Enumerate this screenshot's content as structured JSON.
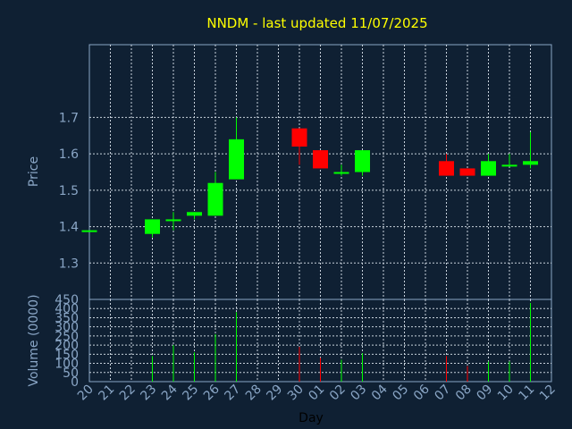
{
  "chart_data": {
    "type": "candlestick",
    "title": "NNDM - last updated 11/07/2025",
    "xlabel": "Day",
    "ylabel_price": "Price",
    "ylabel_volume": "Volume (0000)",
    "x_ticks": [
      "20",
      "21",
      "22",
      "23",
      "24",
      "25",
      "26",
      "27",
      "28",
      "29",
      "30",
      "01",
      "02",
      "03",
      "04",
      "05",
      "06",
      "07",
      "08",
      "09",
      "10",
      "11",
      "12"
    ],
    "price_ticks": [
      "1.3",
      "1.4",
      "1.5",
      "1.6",
      "1.7"
    ],
    "volume_ticks": [
      "0",
      "50",
      "100",
      "150",
      "200",
      "250",
      "300",
      "350",
      "400",
      "450"
    ],
    "price_range": [
      1.2,
      1.9
    ],
    "volume_range": [
      0,
      450
    ],
    "grid": true,
    "colors": {
      "up": "#00ff00",
      "down": "#ff0000",
      "title": "#ffff00",
      "background": "#0f2033",
      "axis": "#8aa6c6"
    },
    "candles": [
      {
        "day": "20",
        "open": 1.39,
        "high": 1.39,
        "low": 1.39,
        "close": 1.39,
        "volume": 0
      },
      {
        "day": "23",
        "open": 1.38,
        "high": 1.42,
        "low": 1.37,
        "close": 1.42,
        "volume": 140
      },
      {
        "day": "24",
        "open": 1.42,
        "high": 1.44,
        "low": 1.39,
        "close": 1.42,
        "volume": 200
      },
      {
        "day": "25",
        "open": 1.43,
        "high": 1.44,
        "low": 1.42,
        "close": 1.44,
        "volume": 160
      },
      {
        "day": "26",
        "open": 1.43,
        "high": 1.55,
        "low": 1.43,
        "close": 1.52,
        "volume": 260
      },
      {
        "day": "27",
        "open": 1.53,
        "high": 1.7,
        "low": 1.53,
        "close": 1.64,
        "volume": 380
      },
      {
        "day": "30",
        "open": 1.67,
        "high": 1.67,
        "low": 1.57,
        "close": 1.62,
        "volume": 190
      },
      {
        "day": "01",
        "open": 1.61,
        "high": 1.61,
        "low": 1.56,
        "close": 1.56,
        "volume": 130
      },
      {
        "day": "02",
        "open": 1.55,
        "high": 1.57,
        "low": 1.54,
        "close": 1.55,
        "volume": 120
      },
      {
        "day": "03",
        "open": 1.55,
        "high": 1.61,
        "low": 1.54,
        "close": 1.61,
        "volume": 155
      },
      {
        "day": "07",
        "open": 1.58,
        "high": 1.6,
        "low": 1.54,
        "close": 1.54,
        "volume": 140
      },
      {
        "day": "08",
        "open": 1.56,
        "high": 1.56,
        "low": 1.54,
        "close": 1.54,
        "volume": 85
      },
      {
        "day": "09",
        "open": 1.54,
        "high": 1.6,
        "low": 1.54,
        "close": 1.58,
        "volume": 110
      },
      {
        "day": "10",
        "open": 1.57,
        "high": 1.6,
        "low": 1.57,
        "close": 1.57,
        "volume": 110
      },
      {
        "day": "11",
        "open": 1.57,
        "high": 1.66,
        "low": 1.56,
        "close": 1.58,
        "volume": 430
      }
    ]
  }
}
